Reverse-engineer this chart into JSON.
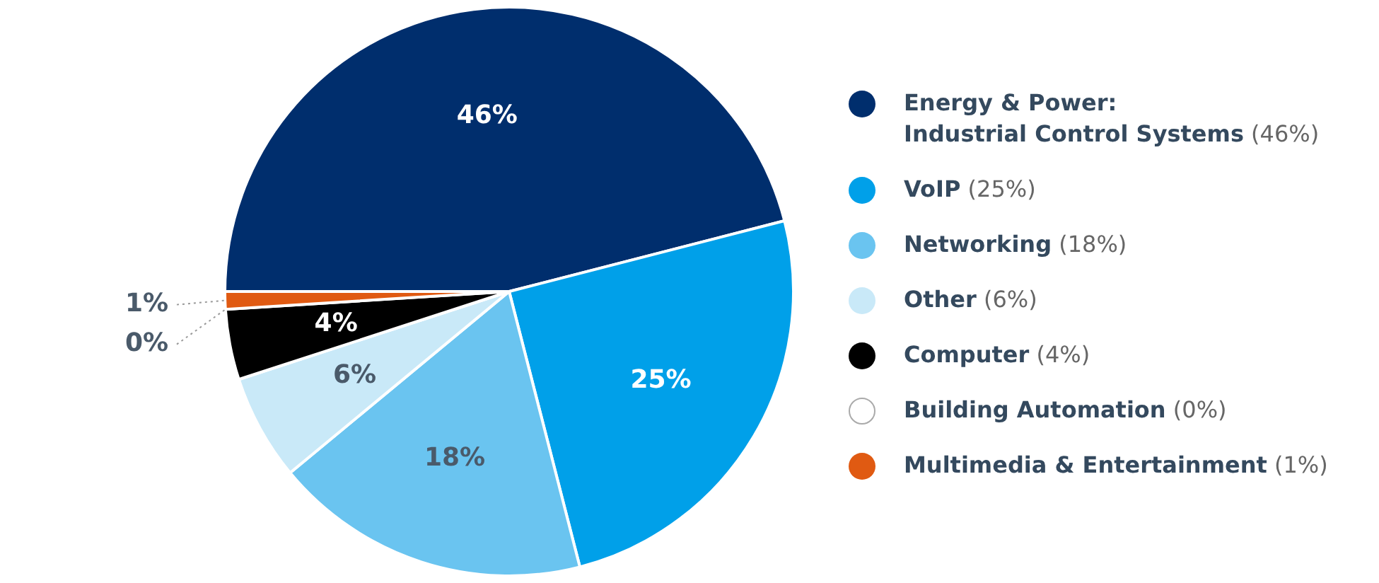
{
  "chart_data": {
    "type": "pie",
    "categories": [
      "Energy & Power:\nIndustrial Control Systems (46%)",
      "VoIP (25%)",
      "Networking (18%)",
      "Other (6%)",
      "Computer (4%)",
      "Building Automation (0%)",
      "Multimedia & Entertainment (1%)"
    ],
    "values": [
      46,
      25,
      18,
      6,
      4,
      0,
      1
    ],
    "value_labels": [
      "46%",
      "25%",
      "18%",
      "6%",
      "4%",
      "0%",
      "1%"
    ],
    "colors": [
      "#002e6d",
      "#00a0e9",
      "#6ac4f0",
      "#c9e9f8",
      "#000000",
      "#ffffff",
      "#e05a12"
    ],
    "legend": "right",
    "data_labels": true
  }
}
